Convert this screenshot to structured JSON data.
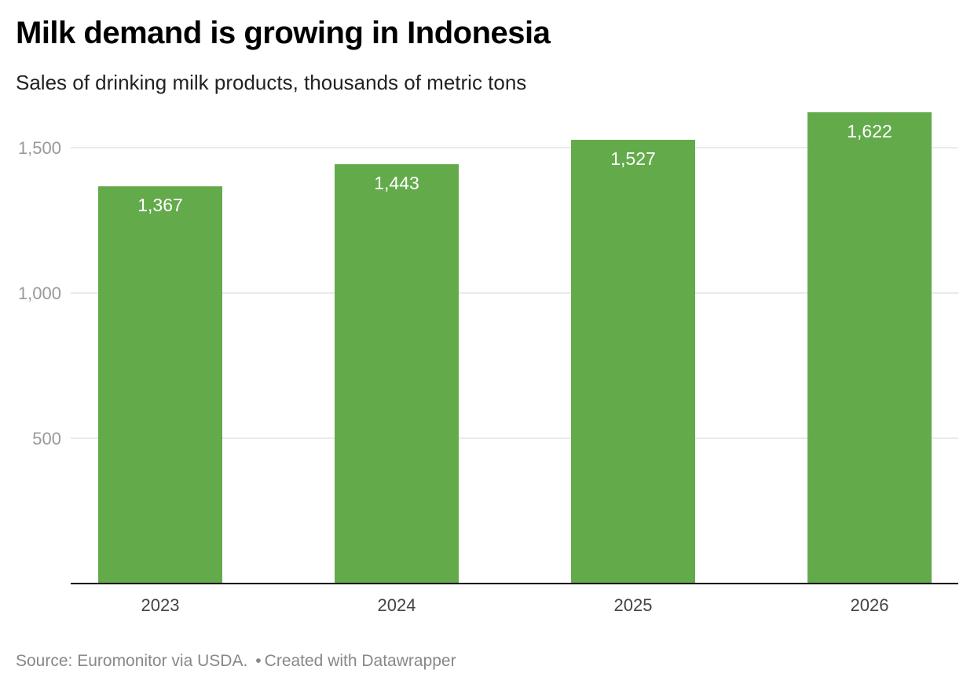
{
  "header": {
    "title": "Milk demand is growing in Indonesia",
    "subtitle": "Sales of drinking milk products, thousands of metric tons"
  },
  "footer": {
    "source": "Source: Euromonitor via USDA.",
    "separator": "•",
    "credit": "Created with Datawrapper"
  },
  "chart_data": {
    "type": "bar",
    "title": "Milk demand is growing in Indonesia",
    "subtitle": "Sales of drinking milk products, thousands of metric tons",
    "categories": [
      "2023",
      "2024",
      "2025",
      "2026"
    ],
    "values": [
      1367,
      1443,
      1527,
      1622
    ],
    "data_labels": [
      "1,367",
      "1,443",
      "1,527",
      "1,622"
    ],
    "yticks": [
      500,
      1000,
      1500
    ],
    "ytick_labels": [
      "500",
      "1,000",
      "1,500"
    ],
    "ylim": [
      0,
      1650
    ],
    "xlabel": "",
    "ylabel": "",
    "grid": true,
    "legend": "none",
    "bar_color": "#63aa4b",
    "grid_color": "#e3e3e3",
    "axis_color": "#000000"
  }
}
